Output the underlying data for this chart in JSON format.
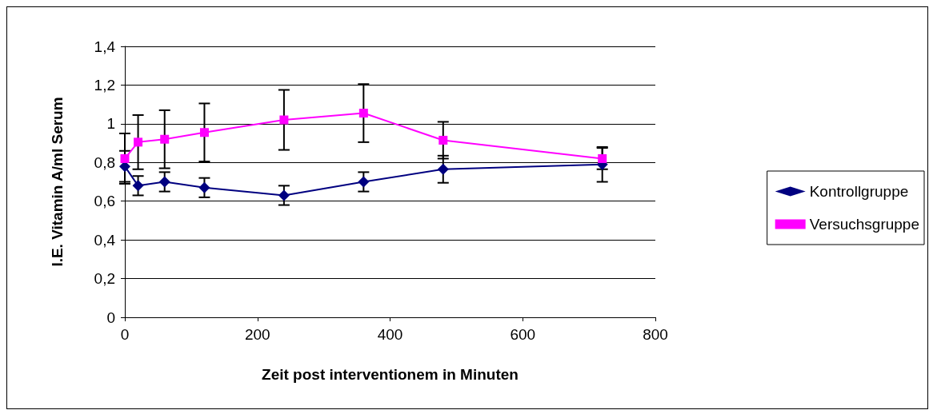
{
  "chart_data": {
    "type": "line",
    "xlabel": "Zeit post interventionem in Minuten",
    "ylabel": "I.E. Vitamin A/ml Serum",
    "x": [
      0,
      20,
      60,
      120,
      240,
      360,
      480,
      720
    ],
    "series": [
      {
        "name": "Kontrollgruppe",
        "color": "#000080",
        "marker": "diamond",
        "values": [
          0.78,
          0.68,
          0.7,
          0.67,
          0.63,
          0.7,
          0.765,
          0.79
        ],
        "errors": [
          0.08,
          0.05,
          0.05,
          0.05,
          0.05,
          0.05,
          0.07,
          0.09
        ]
      },
      {
        "name": "Versuchsgruppe",
        "color": "#ff00ff",
        "marker": "square",
        "values": [
          0.82,
          0.905,
          0.92,
          0.955,
          1.02,
          1.055,
          0.915,
          0.82
        ],
        "errors": [
          0.13,
          0.14,
          0.15,
          0.15,
          0.155,
          0.15,
          0.095,
          0.055
        ]
      }
    ],
    "xlim": [
      0,
      800
    ],
    "xticks": [
      0,
      200,
      400,
      600,
      800
    ],
    "ylim": [
      0,
      1.4
    ],
    "yticks": [
      0,
      {
        "value": 0.2,
        "label": "0,2"
      },
      {
        "value": 0.4,
        "label": "0,4"
      },
      {
        "value": 0.6,
        "label": "0,6"
      },
      {
        "value": 0.8,
        "label": "0,8"
      },
      1,
      {
        "value": 1.2,
        "label": "1,2"
      },
      {
        "value": 1.4,
        "label": "1,4"
      }
    ],
    "grid": "y",
    "legend": "right"
  }
}
